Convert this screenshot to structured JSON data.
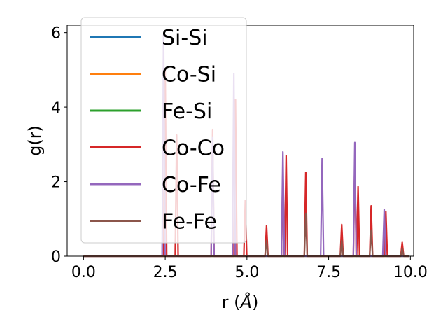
{
  "chart_data": {
    "type": "line",
    "title": "",
    "xlabel_text": "r (",
    "xlabel_unit": "Å",
    "xlabel_close": ")",
    "ylabel": "g(r)",
    "xlim": [
      -0.5,
      10.1
    ],
    "ylim": [
      0,
      6.2
    ],
    "xticks": [
      0.0,
      2.5,
      5.0,
      7.5,
      10.0
    ],
    "xtick_labels": [
      "0.0",
      "2.5",
      "5.0",
      "7.5",
      "10.0"
    ],
    "yticks": [
      0,
      2,
      4,
      6
    ],
    "ytick_labels": [
      "0",
      "2",
      "4",
      "6"
    ],
    "grid": false,
    "legend_position": "upper left",
    "series": [
      {
        "name": "Si-Si",
        "color": "#1f77b4",
        "peaks": []
      },
      {
        "name": "Co-Si",
        "color": "#ff7f0e",
        "peaks": []
      },
      {
        "name": "Fe-Si",
        "color": "#2ca02c",
        "peaks": []
      },
      {
        "name": "Co-Co",
        "color": "#d62728",
        "peaks": [
          [
            2.5,
            5.0
          ],
          [
            2.85,
            3.25
          ],
          [
            3.95,
            3.4
          ],
          [
            4.65,
            4.2
          ],
          [
            4.95,
            1.5
          ],
          [
            5.6,
            0.82
          ],
          [
            6.1,
            2.3
          ],
          [
            6.2,
            2.7
          ],
          [
            6.8,
            2.25
          ],
          [
            7.9,
            0.85
          ],
          [
            8.3,
            2.6
          ],
          [
            8.4,
            1.87
          ],
          [
            8.8,
            1.35
          ],
          [
            9.25,
            1.2
          ],
          [
            9.75,
            0.37
          ]
        ]
      },
      {
        "name": "Co-Fe",
        "color": "#9467bd",
        "peaks": [
          [
            2.45,
            5.95
          ],
          [
            3.95,
            3.2
          ],
          [
            4.6,
            4.9
          ],
          [
            6.1,
            2.8
          ],
          [
            7.3,
            2.62
          ],
          [
            8.3,
            3.05
          ],
          [
            9.2,
            1.25
          ]
        ]
      },
      {
        "name": "Fe-Fe",
        "color": "#8c564b",
        "peaks": [
          [
            5.6,
            0.42
          ],
          [
            6.8,
            1.15
          ],
          [
            7.9,
            0.42
          ],
          [
            8.8,
            0.7
          ],
          [
            9.75,
            0.2
          ]
        ]
      }
    ]
  }
}
